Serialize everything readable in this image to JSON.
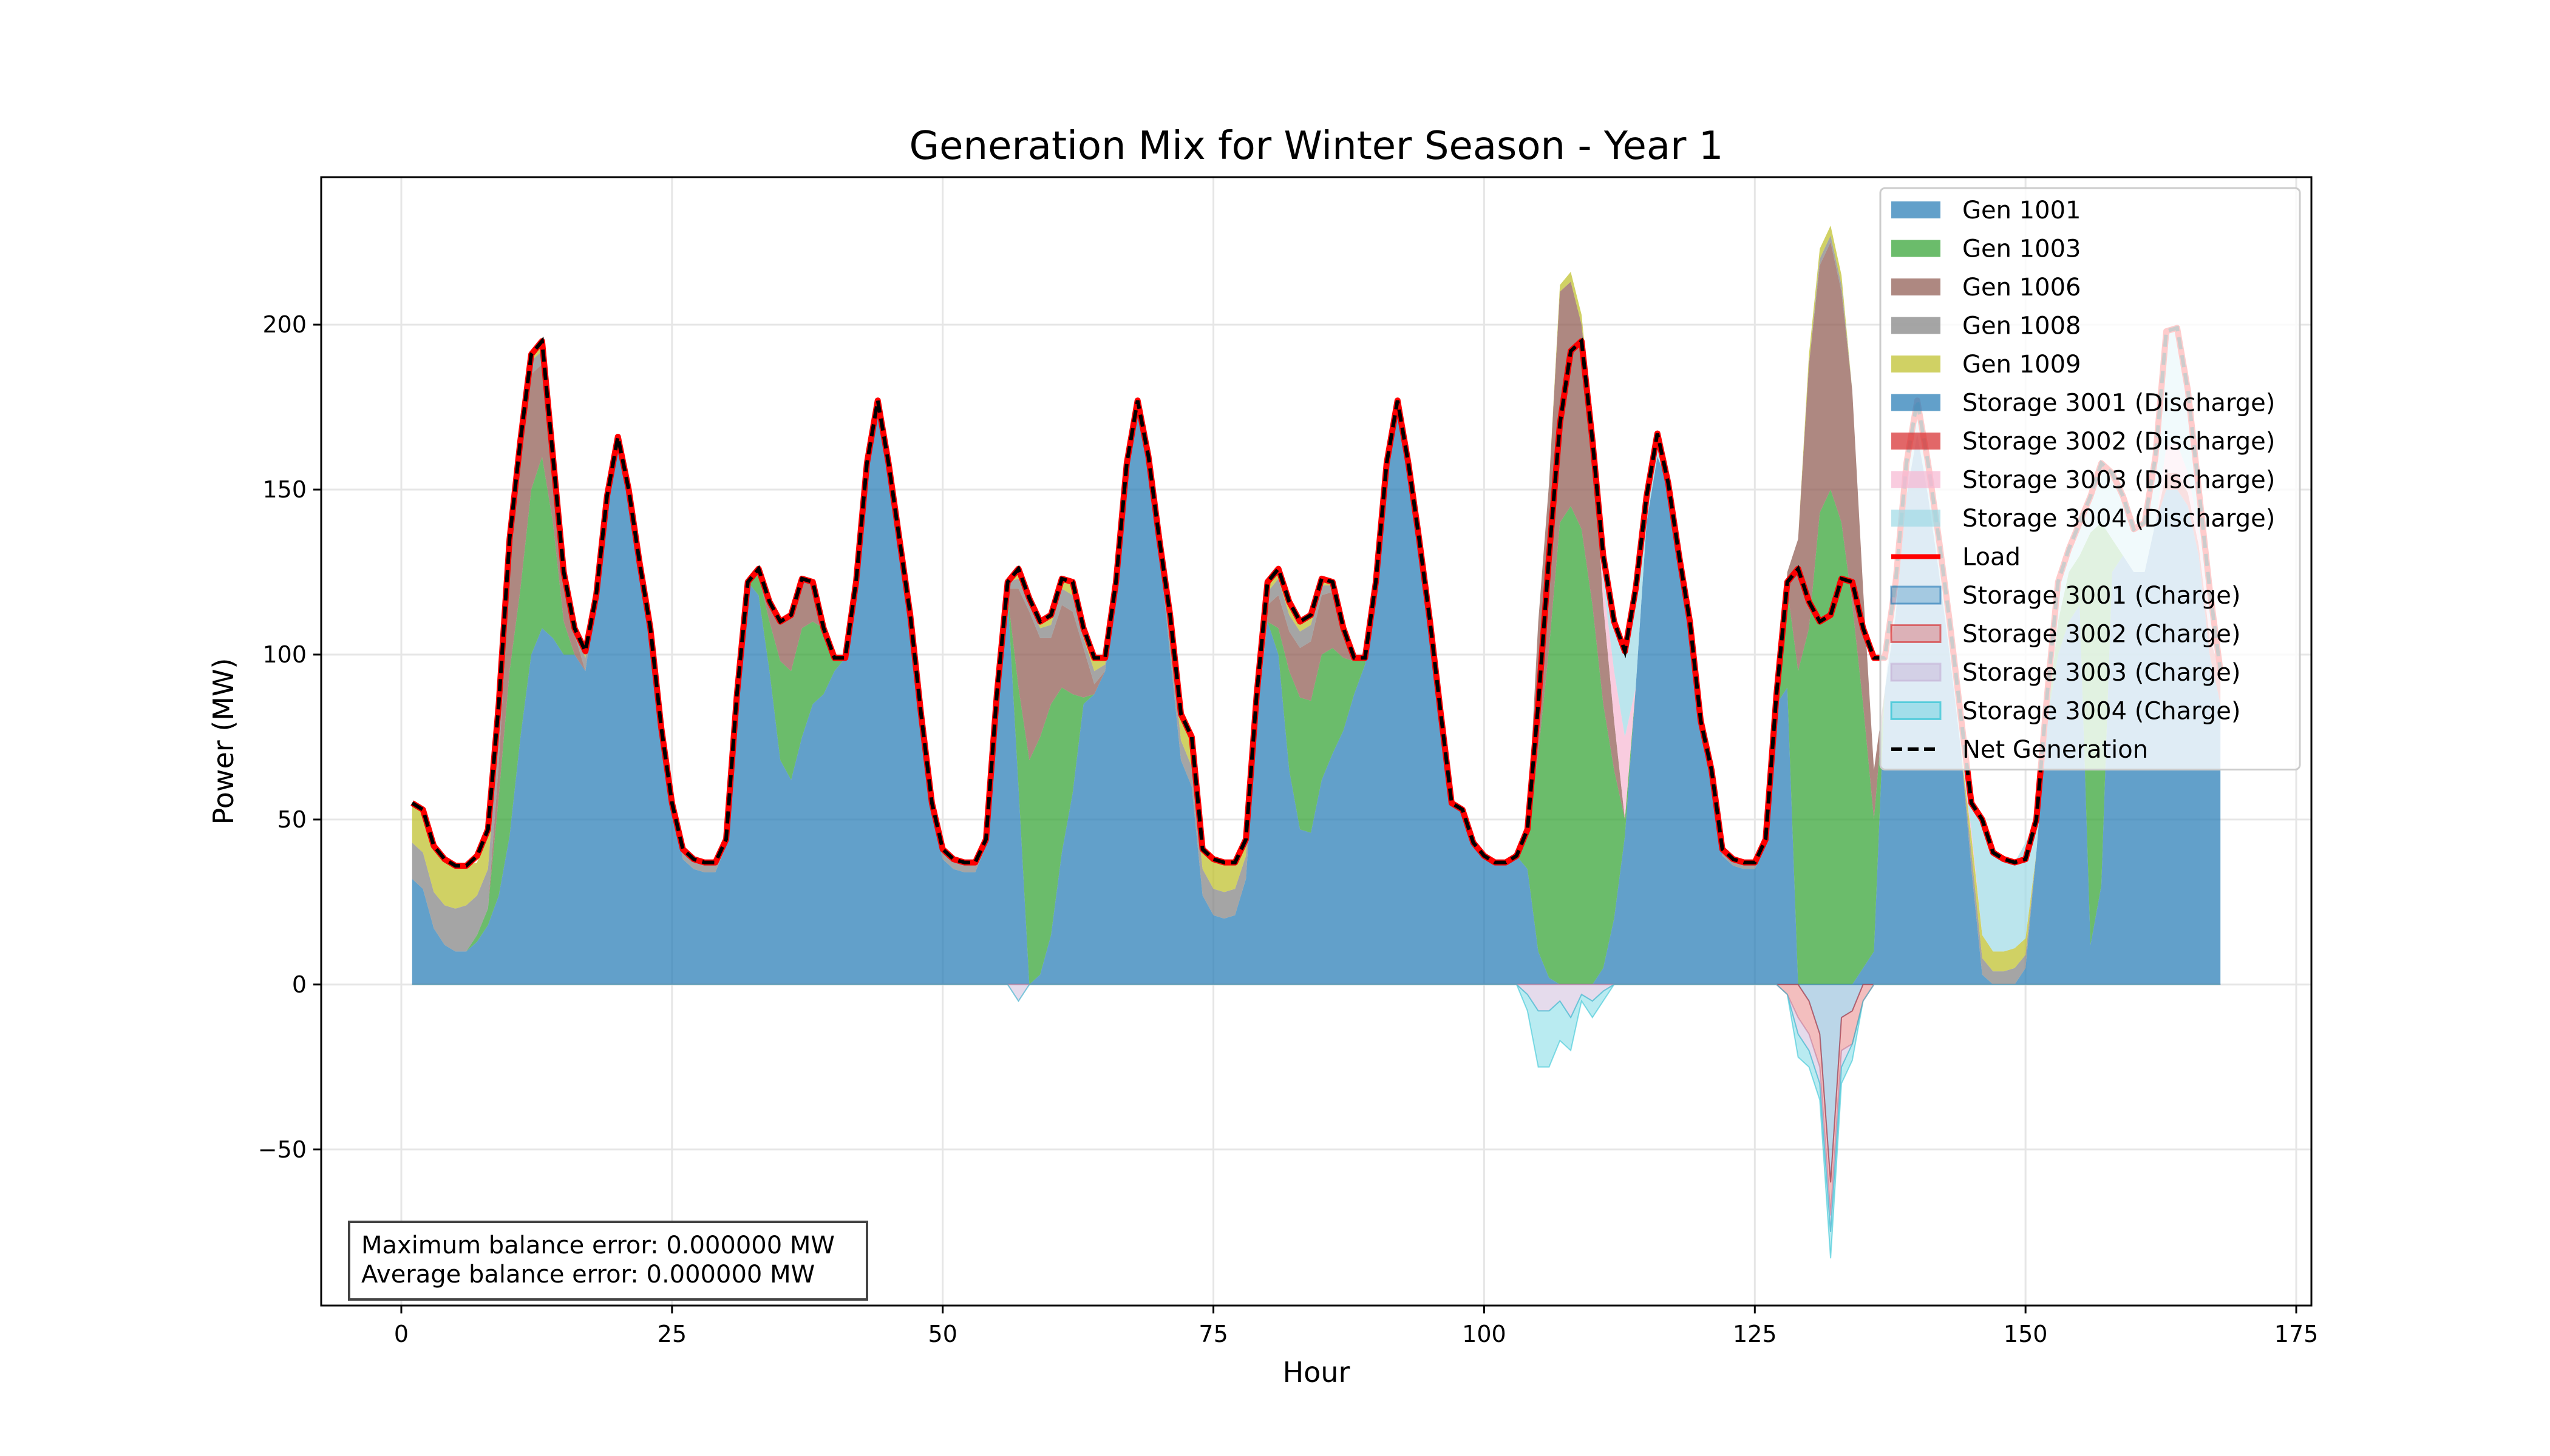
{
  "chart_data": {
    "type": "area",
    "title": "Generation Mix for Winter Season - Year 1",
    "xlabel": "Hour",
    "ylabel": "Power (MW)",
    "xlim": [
      -7.4,
      176.4
    ],
    "ylim": [
      -97.3,
      244.7
    ],
    "grid": true,
    "legend_placement": "top-right",
    "x_ticks": [
      0,
      25,
      50,
      75,
      100,
      125,
      150,
      175
    ],
    "x_tick_labels": [
      "0",
      "25",
      "50",
      "75",
      "100",
      "125",
      "150",
      "175"
    ],
    "y_ticks": [
      -50,
      0,
      50,
      100,
      150,
      200
    ],
    "y_tick_labels": [
      "−50",
      "0",
      "50",
      "100",
      "150",
      "200"
    ],
    "hours_start": 1,
    "hours_end": 168,
    "load": [
      55,
      53,
      42,
      38,
      36,
      36,
      39,
      47,
      85,
      135,
      165,
      191,
      195,
      160,
      125,
      108,
      101,
      118,
      148,
      166,
      150,
      128,
      108,
      78,
      55,
      41,
      38,
      37,
      37,
      44,
      88,
      122,
      126,
      116,
      110,
      112,
      123,
      122,
      108,
      99,
      99,
      122,
      158,
      177,
      158,
      135,
      112,
      82,
      55,
      41,
      38,
      37,
      37,
      44,
      88,
      122,
      126,
      117,
      110,
      112,
      123,
      122,
      108,
      99,
      99,
      122,
      158,
      177,
      160,
      135,
      112,
      82,
      75,
      41,
      38,
      37,
      37,
      44,
      88,
      122,
      126,
      116,
      110,
      112,
      123,
      122,
      108,
      99,
      99,
      122,
      158,
      177,
      158,
      135,
      110,
      82,
      55,
      53,
      43,
      39,
      37,
      37,
      39,
      47,
      85,
      130,
      170,
      192,
      195,
      165,
      130,
      110,
      101,
      120,
      148,
      167,
      152,
      130,
      110,
      80,
      65,
      41,
      38,
      37,
      37,
      44,
      88,
      122,
      126,
      116,
      110,
      112,
      123,
      122,
      108,
      99,
      99,
      122,
      158,
      177,
      158,
      135,
      110,
      82,
      55,
      50,
      40,
      38,
      37,
      38,
      50,
      88,
      122,
      132,
      140,
      148,
      158,
      155,
      148,
      138,
      140,
      160,
      198,
      199,
      180,
      150,
      120,
      95
    ],
    "generation_series": [
      {
        "name": "Gen 1001",
        "color": "#1f77b4",
        "alpha": 0.7,
        "values": [
          32,
          29,
          17,
          12,
          10,
          10,
          13,
          18,
          27,
          45,
          75,
          100,
          108,
          105,
          100,
          100,
          95,
          118,
          148,
          166,
          150,
          128,
          108,
          78,
          55,
          38,
          35,
          34,
          34,
          42,
          88,
          122,
          118,
          95,
          68,
          62,
          75,
          85,
          88,
          95,
          99,
          122,
          158,
          177,
          158,
          135,
          112,
          82,
          52,
          38,
          35,
          34,
          34,
          42,
          88,
          118,
          60,
          0,
          3,
          15,
          40,
          58,
          85,
          88,
          95,
          119,
          155,
          174,
          157,
          132,
          100,
          68,
          60,
          27,
          21,
          20,
          21,
          32,
          80,
          110,
          100,
          65,
          47,
          46,
          62,
          70,
          77,
          88,
          97,
          122,
          158,
          177,
          158,
          135,
          110,
          82,
          55,
          53,
          43,
          39,
          37,
          37,
          39,
          35,
          10,
          2,
          0,
          0,
          0,
          0,
          5,
          20,
          45,
          90,
          140,
          160,
          152,
          130,
          110,
          80,
          63,
          39,
          36,
          35,
          35,
          42,
          85,
          90,
          0,
          0,
          0,
          0,
          0,
          0,
          5,
          10,
          89,
          112,
          148,
          167,
          148,
          125,
          100,
          72,
          35,
          3,
          0,
          0,
          0,
          5,
          40,
          80,
          100,
          110,
          115,
          12,
          30,
          125,
          130,
          125,
          125,
          140,
          150,
          150,
          145,
          130,
          100,
          85
        ]
      },
      {
        "name": "Gen 1003",
        "color": "#2ca02c",
        "alpha": 0.7,
        "values_by_hour": {
          "7": 2,
          "8": 5,
          "9": 30,
          "10": 50,
          "11": 45,
          "12": 50,
          "13": 52,
          "14": 35,
          "15": 10,
          "33": 6,
          "34": 15,
          "35": 30,
          "36": 33,
          "37": 33,
          "38": 25,
          "39": 20,
          "40": 4,
          "57": 30,
          "58": 68,
          "59": 72,
          "60": 70,
          "61": 50,
          "62": 30,
          "63": 2,
          "81": 8,
          "82": 30,
          "83": 40,
          "84": 40,
          "85": 38,
          "86": 32,
          "87": 22,
          "88": 10,
          "89": 2,
          "104": 12,
          "105": 60,
          "106": 100,
          "107": 140,
          "108": 145,
          "109": 138,
          "110": 115,
          "111": 80,
          "112": 45,
          "113": 5,
          "128": 30,
          "129": 95,
          "130": 108,
          "131": 143,
          "132": 150,
          "133": 140,
          "134": 115,
          "135": 80,
          "136": 40,
          "153": 10,
          "154": 15,
          "155": 15,
          "156": 125,
          "157": 110,
          "158": 10
        }
      },
      {
        "name": "Gen 1006",
        "color": "#8c564b",
        "alpha": 0.7,
        "values_by_hour": {
          "9": 10,
          "10": 30,
          "11": 40,
          "12": 35,
          "13": 28,
          "14": 20,
          "15": 15,
          "16": 6,
          "33": 2,
          "34": 6,
          "35": 12,
          "36": 17,
          "37": 15,
          "38": 12,
          "56": 2,
          "57": 30,
          "58": 45,
          "59": 30,
          "60": 20,
          "61": 25,
          "62": 25,
          "63": 15,
          "64": 3,
          "80": 5,
          "81": 10,
          "82": 12,
          "83": 15,
          "84": 18,
          "85": 18,
          "86": 17,
          "87": 7,
          "105": 40,
          "106": 50,
          "107": 70,
          "108": 68,
          "109": 62,
          "110": 55,
          "111": 30,
          "112": 15,
          "127": 3,
          "128": 5,
          "129": 40,
          "130": 80,
          "131": 75,
          "132": 75,
          "133": 70,
          "134": 65,
          "135": 35,
          "136": 15
        }
      },
      {
        "name": "Gen 1008",
        "color": "#7f7f7f",
        "alpha": 0.7,
        "values_by_hour": {
          "1": 11,
          "2": 11,
          "3": 11,
          "4": 12,
          "5": 13,
          "6": 14,
          "7": 12,
          "8": 12,
          "9": 10,
          "10": 5,
          "11": 3,
          "12": 4,
          "13": 4,
          "16": 2,
          "17": 4,
          "26": 3,
          "27": 3,
          "28": 3,
          "29": 3,
          "30": 2,
          "49": 3,
          "50": 3,
          "51": 3,
          "52": 3,
          "53": 3,
          "54": 2,
          "56": 2,
          "57": 3,
          "58": 2,
          "59": 3,
          "60": 4,
          "61": 5,
          "62": 5,
          "63": 3,
          "64": 4,
          "65": 2,
          "66": 3,
          "67": 3,
          "68": 3,
          "69": 3,
          "70": 3,
          "71": 6,
          "72": 6,
          "73": 6,
          "74": 8,
          "75": 8,
          "76": 8,
          "77": 8,
          "78": 7,
          "79": 5,
          "80": 4,
          "81": 5,
          "82": 5,
          "83": 5,
          "84": 5,
          "85": 3,
          "86": 2,
          "87": 1,
          "88": 1,
          "121": 2,
          "122": 2,
          "123": 2,
          "124": 2,
          "125": 2,
          "126": 2,
          "131": 2,
          "132": 2,
          "133": 2,
          "145": 5,
          "146": 5,
          "147": 4,
          "148": 4,
          "149": 5,
          "150": 4
        }
      },
      {
        "name": "Gen 1009",
        "color": "#bcbd22",
        "alpha": 0.7,
        "values_by_hour": {
          "1": 12,
          "2": 13,
          "3": 14,
          "4": 14,
          "5": 13,
          "6": 12,
          "7": 10,
          "8": 12,
          "9": 8,
          "10": 5,
          "11": 2,
          "12": 2,
          "13": 3,
          "17": 2,
          "57": 3,
          "58": 2,
          "59": 2,
          "60": 3,
          "61": 3,
          "62": 4,
          "63": 3,
          "64": 4,
          "65": 2,
          "71": 6,
          "72": 8,
          "73": 9,
          "74": 6,
          "75": 9,
          "76": 9,
          "77": 8,
          "78": 5,
          "79": 3,
          "80": 3,
          "81": 3,
          "82": 4,
          "83": 3,
          "84": 3,
          "85": 2,
          "86": 1,
          "87": 1,
          "107": 2,
          "108": 3,
          "109": 3,
          "130": 3,
          "131": 3,
          "132": 3,
          "133": 3,
          "145": 5,
          "146": 7,
          "147": 6,
          "148": 6,
          "149": 6,
          "150": 5
        }
      },
      {
        "name": "Storage 3001 (Discharge)",
        "color": "#1f77b4",
        "alpha": 0.7,
        "values_by_hour": {}
      },
      {
        "name": "Storage 3002 (Discharge)",
        "color": "#d62728",
        "alpha": 0.7,
        "values_by_hour": {
          "163": 5,
          "164": 5,
          "165": 4,
          "166": 3,
          "167": 5,
          "168": 10
        }
      },
      {
        "name": "Storage 3003 (Discharge)",
        "color": "#f7b6d2",
        "alpha": 0.7,
        "values_by_hour": {
          "111": 7,
          "112": 15,
          "113": 25,
          "145": 2,
          "163": 8,
          "164": 9,
          "165": 6,
          "166": 5,
          "167": 5
        }
      },
      {
        "name": "Storage 3004 (Discharge)",
        "color": "#9edae5",
        "alpha": 0.7,
        "values_by_hour": {
          "111": 8,
          "112": 15,
          "113": 26,
          "114": 30,
          "115": 8,
          "116": 7,
          "138": 10,
          "139": 10,
          "140": 10,
          "141": 10,
          "142": 10,
          "143": 10,
          "144": 10,
          "145": 8,
          "146": 35,
          "147": 30,
          "148": 28,
          "149": 26,
          "150": 29,
          "151": 10,
          "152": 8,
          "153": 12,
          "154": 7,
          "155": 10,
          "156": 11,
          "157": 18,
          "158": 20,
          "159": 18,
          "160": 13,
          "161": 15,
          "162": 20,
          "163": 35,
          "164": 35,
          "165": 25,
          "166": 12,
          "167": 10
        }
      }
    ],
    "charge_series": [
      {
        "name": "Storage 3001 (Charge)",
        "color": "#1f77b4",
        "alpha": 0.3,
        "values_by_hour": {
          "130": -5,
          "131": -15,
          "132": -60,
          "133": -10,
          "134": -8
        }
      },
      {
        "name": "Storage 3002 (Charge)",
        "color": "#d62728",
        "alpha": 0.3,
        "values_by_hour": {
          "128": -3,
          "129": -10,
          "130": -10,
          "131": -10,
          "132": -10,
          "133": -10,
          "134": -10,
          "135": -5
        }
      },
      {
        "name": "Storage 3003 (Charge)",
        "color": "#c5b0d5",
        "alpha": 0.45,
        "values_by_hour": {
          "57": -5,
          "104": -3,
          "105": -8,
          "106": -8,
          "107": -5,
          "108": -10,
          "109": -3,
          "110": -5,
          "111": -2,
          "129": -5,
          "130": -5,
          "131": -5,
          "132": -5,
          "133": -5
        }
      },
      {
        "name": "Storage 3004 (Charge)",
        "color": "#17becf",
        "alpha": 0.3,
        "values_by_hour": {
          "104": -5,
          "105": -17,
          "106": -17,
          "107": -12,
          "108": -10,
          "109": -2,
          "110": -5,
          "111": -3,
          "129": -7,
          "130": -5,
          "131": -5,
          "132": -8,
          "133": -5,
          "134": -5
        }
      }
    ],
    "lines": [
      {
        "name": "Load",
        "color": "#ff0000",
        "style": "solid"
      },
      {
        "name": "Net Generation",
        "color": "#000000",
        "style": "dashed"
      }
    ],
    "legend_entries": [
      "Gen 1001",
      "Gen 1003",
      "Gen 1006",
      "Gen 1008",
      "Gen 1009",
      "Storage 3001 (Discharge)",
      "Storage 3002 (Discharge)",
      "Storage 3003 (Discharge)",
      "Storage 3004 (Discharge)",
      "Load",
      "Storage 3001 (Charge)",
      "Storage 3002 (Charge)",
      "Storage 3003 (Charge)",
      "Storage 3004 (Charge)",
      "Net Generation"
    ],
    "annotation": {
      "max_error": "Maximum balance error: 0.000000 MW",
      "avg_error": "Average balance error: 0.000000 MW"
    }
  }
}
